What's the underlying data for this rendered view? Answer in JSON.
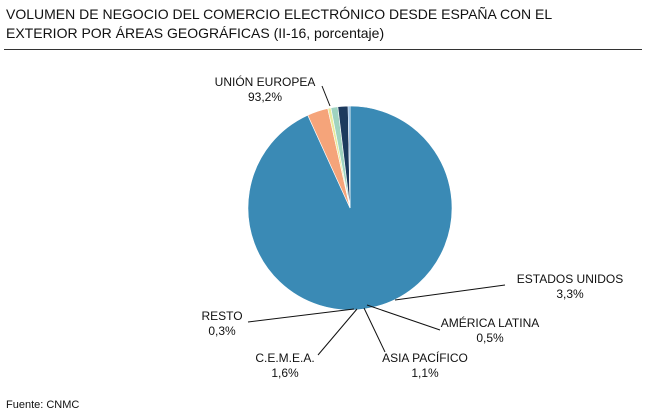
{
  "title_line1": "VOLUMEN DE NEGOCIO DEL COMERCIO ELECTRÓNICO DESDE ESPAÑA CON EL",
  "title_line2": "EXTERIOR POR ÁREAS GEOGRÁFICAS (II-16, porcentaje)",
  "source": "Fuente: CNMC",
  "chart_data": {
    "type": "pie",
    "title": "VOLUMEN DE NEGOCIO DEL COMERCIO ELECTRÓNICO DESDE ESPAÑA CON EL EXTERIOR POR ÁREAS GEOGRÁFICAS (II-16, porcentaje)",
    "slices": [
      {
        "label": "UNIÓN EUROPEA",
        "value_text": "93,2%",
        "value": 93.2,
        "color": "#3A8AB5"
      },
      {
        "label": "ESTADOS UNIDOS",
        "value_text": "3,3%",
        "value": 3.3,
        "color": "#F5A47A"
      },
      {
        "label": "AMÉRICA LATINA",
        "value_text": "0,5%",
        "value": 0.5,
        "color": "#E8EB9C"
      },
      {
        "label": "ASIA PACÍFICO",
        "value_text": "1,1%",
        "value": 1.1,
        "color": "#9FD3C0"
      },
      {
        "label": "C.E.M.E.A.",
        "value_text": "1,6%",
        "value": 1.6,
        "color": "#1C3A5E"
      },
      {
        "label": "RESTO",
        "value_text": "0,3%",
        "value": 0.3,
        "color": "#6FA8DC"
      }
    ]
  }
}
